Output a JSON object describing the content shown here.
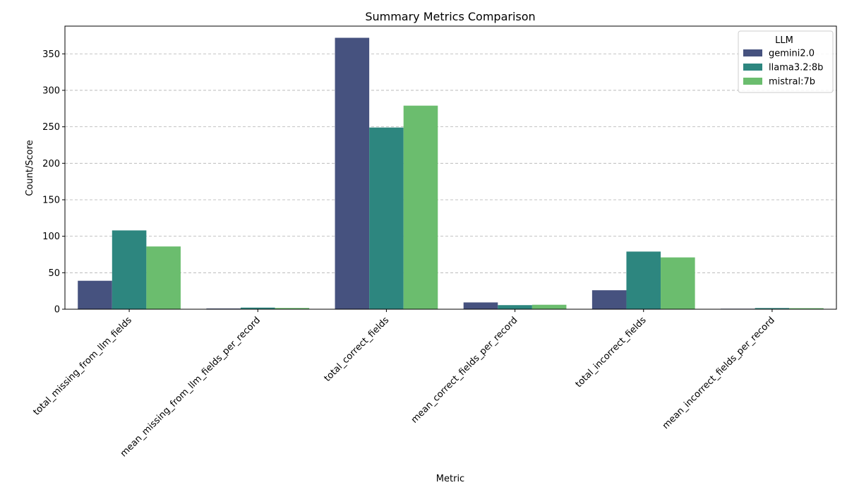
{
  "chart_data": {
    "type": "bar",
    "title": "Summary Metrics Comparison",
    "xlabel": "Metric",
    "ylabel": "Count/Score",
    "ylim": [
      0,
      388
    ],
    "yticks": [
      0,
      50,
      100,
      150,
      200,
      250,
      300,
      350
    ],
    "grid": "y-axis, dashed",
    "legend_title": "LLM",
    "legend_position": "top-right",
    "categories": [
      "total_missing_from_llm_fields",
      "mean_missing_from_llm_fields_per_record",
      "total_correct_fields",
      "mean_correct_fields_per_record",
      "total_incorrect_fields",
      "mean_incorrect_fields_per_record"
    ],
    "series": [
      {
        "name": "gemini2.0",
        "color": "#46527f",
        "values": [
          39,
          1.0,
          372,
          9.3,
          26,
          0.7
        ]
      },
      {
        "name": "llama3.2:8b",
        "color": "#2d867f",
        "values": [
          108,
          2.2,
          249,
          5.6,
          79,
          1.6
        ]
      },
      {
        "name": "mistral:7b",
        "color": "#6bbd6e",
        "values": [
          86,
          1.7,
          279,
          6.1,
          71,
          1.4
        ]
      }
    ]
  }
}
